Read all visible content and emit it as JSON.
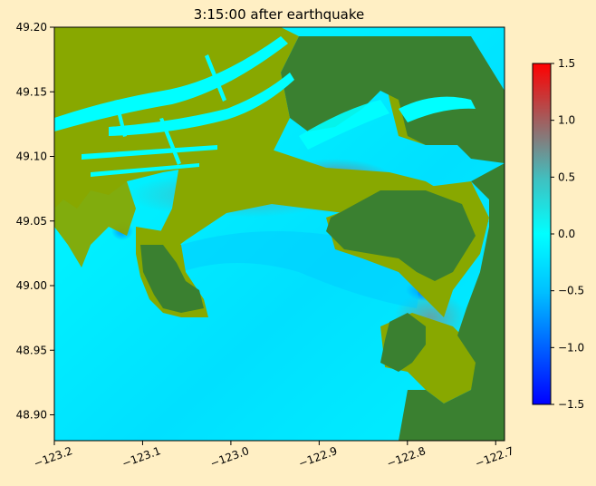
{
  "chart_data": {
    "type": "heatmap",
    "title": "3:15:00 after earthquake",
    "xlabel": "",
    "ylabel": "",
    "xlim": [
      -123.2,
      -122.69
    ],
    "ylim": [
      48.88,
      49.2
    ],
    "x_ticks": [
      "−123.2",
      "−123.1",
      "−123.0",
      "−122.9",
      "−122.8",
      "−122.7"
    ],
    "x_tick_values": [
      -123.2,
      -123.1,
      -123.0,
      -122.9,
      -122.8,
      -122.7
    ],
    "y_ticks": [
      "49.20",
      "49.15",
      "49.10",
      "49.05",
      "49.00",
      "48.95",
      "48.90"
    ],
    "y_tick_values": [
      49.2,
      49.15,
      49.1,
      49.05,
      49.0,
      48.95,
      48.9
    ],
    "colorbar": {
      "range": [
        -1.5,
        1.5
      ],
      "ticks": [
        "1.5",
        "1.0",
        "0.5",
        "0.0",
        "−0.5",
        "−1.0",
        "−1.5"
      ],
      "tick_values": [
        1.5,
        1.0,
        0.5,
        0.0,
        -0.5,
        -1.0,
        -1.5
      ],
      "colors": [
        "#0000ff",
        "#00c0ff",
        "#00ffff",
        "#40c0c0",
        "#a06060",
        "#ff0000"
      ]
    },
    "land_colors": {
      "lowland": "#88a800",
      "upland": "#3a8030"
    },
    "grid": false,
    "legend": "right colorbar"
  }
}
